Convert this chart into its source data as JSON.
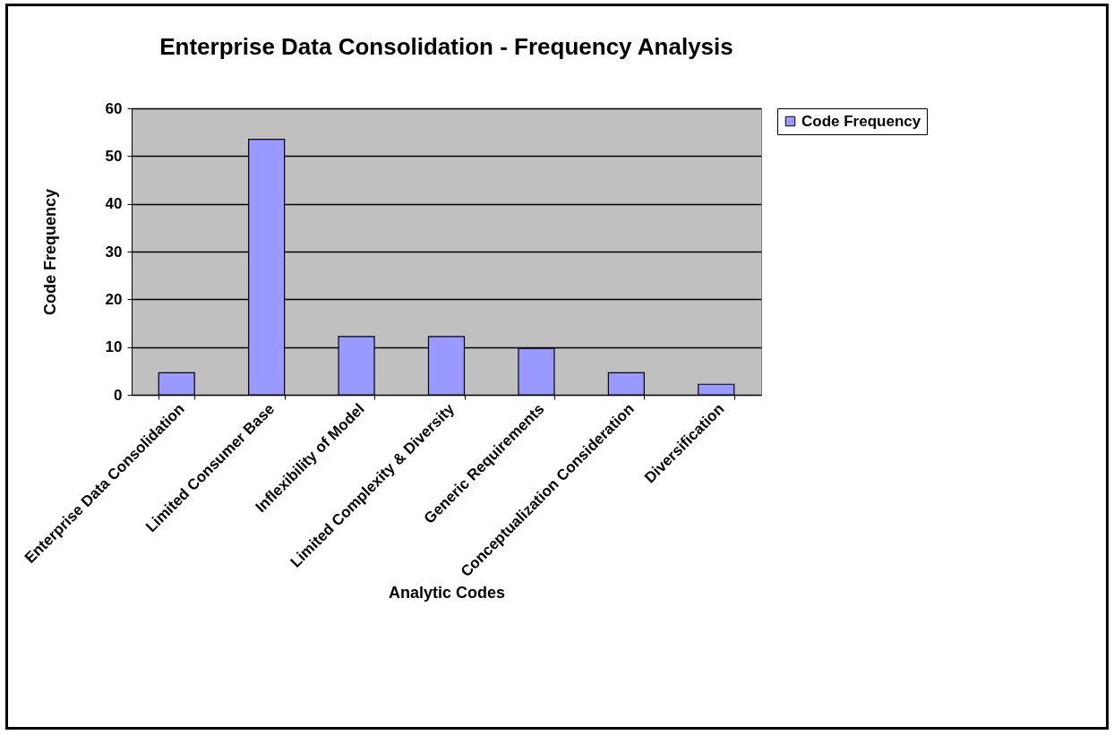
{
  "chart_data": {
    "type": "bar",
    "title": "Enterprise Data Consolidation -  Frequency Analysis",
    "xlabel": "Analytic Codes",
    "ylabel": "Code Frequency",
    "categories": [
      "Enterprise Data Consolidation",
      "Limited Consumer Base",
      "Inflexibility of Model",
      "Limited Complexity & Diversity",
      "Generic Requirements",
      "Conceptualization Consideration",
      "Diversification"
    ],
    "series": [
      {
        "name": "Code Frequency",
        "color": "#9999ff",
        "values": [
          4.6,
          53.5,
          12.2,
          12.2,
          9.7,
          4.6,
          2.2
        ]
      }
    ],
    "ylim": [
      0,
      60
    ],
    "yticks": [
      0,
      10,
      20,
      30,
      40,
      50,
      60
    ],
    "grid": "y",
    "legend": "right"
  }
}
